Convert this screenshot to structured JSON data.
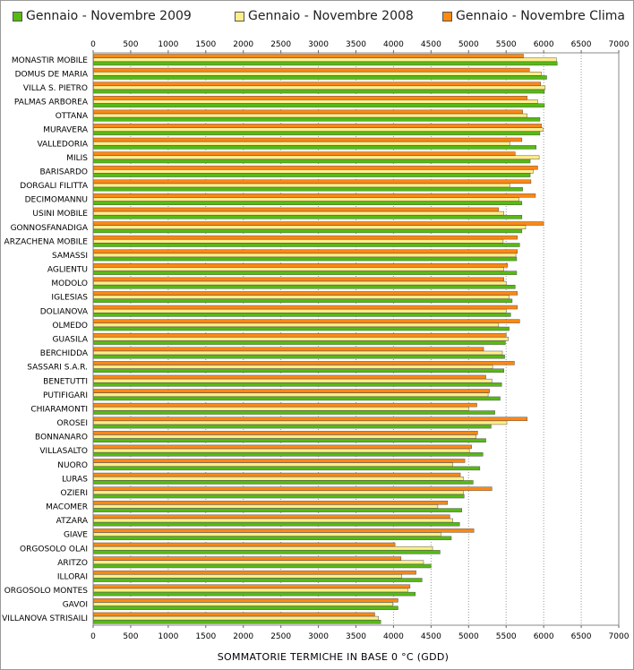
{
  "legend": [
    {
      "label": "Gennaio - Novembre 2009",
      "color": "#55bb11"
    },
    {
      "label": "Gennaio - Novembre 2008",
      "color": "#ffee88"
    },
    {
      "label": "Gennaio - Novembre Clima",
      "color": "#ff8811"
    }
  ],
  "chart_data": {
    "type": "bar",
    "orientation": "horizontal",
    "xlabel": "SOMMATORIE TERMICHE IN BASE 0 °C (GDD)",
    "xlim": [
      0,
      7000
    ],
    "xticks": [
      0,
      500,
      1000,
      1500,
      2000,
      2500,
      3000,
      3500,
      4000,
      4500,
      5000,
      5500,
      6000,
      6500,
      7000
    ],
    "grid": "vertical dotted",
    "legend_position": "top",
    "categories": [
      "MONASTIR MOBILE",
      "DOMUS DE MARIA",
      "VILLA S. PIETRO",
      "PALMAS ARBOREA",
      "OTTANA",
      "MURAVERA",
      "VALLEDORIA",
      "MILIS",
      "BARISARDO",
      "DORGALI FILITTA",
      "DECIMOMANNU",
      "USINI MOBILE",
      "GONNOSFANADIGA",
      "ARZACHENA MOBILE",
      "SAMASSI",
      "AGLIENTU",
      "MODOLO",
      "IGLESIAS",
      "DOLIANOVA",
      "OLMEDO",
      "GUASILA",
      "BERCHIDDA",
      "SASSARI S.A.R.",
      "BENETUTTI",
      "PUTIFIGARI",
      "CHIARAMONTI",
      "OROSEI",
      "BONNANARO",
      "VILLASALTO",
      "NUORO",
      "LURAS",
      "OZIERI",
      "MACOMER",
      "ATZARA",
      "GIAVE",
      "ORGOSOLO OLAI",
      "ARITZO",
      "ILLORAI",
      "ORGOSOLO MONTES",
      "GAVOI",
      "VILLANOVA STRISAILI"
    ],
    "series": [
      {
        "name": "Gennaio - Novembre Clima",
        "color": "#ff8811",
        "values": [
          5730,
          5810,
          5960,
          5780,
          5720,
          5970,
          5710,
          5620,
          5920,
          5830,
          5890,
          5400,
          6000,
          5650,
          5650,
          5520,
          5470,
          5650,
          5650,
          5680,
          5500,
          5200,
          5610,
          5230,
          5280,
          5110,
          5780,
          5120,
          5040,
          4950,
          4890,
          5310,
          4720,
          4750,
          5070,
          4020,
          4100,
          4300,
          4220,
          4060,
          3750
        ]
      },
      {
        "name": "Gennaio - Novembre 2008",
        "color": "#ffee88",
        "values": [
          6170,
          5970,
          6020,
          5920,
          5780,
          5990,
          5550,
          5940,
          5860,
          5550,
          5670,
          5470,
          5760,
          5460,
          5630,
          5470,
          5500,
          5540,
          5500,
          5400,
          5530,
          5450,
          5320,
          5310,
          5260,
          5000,
          5510,
          5100,
          5010,
          4790,
          4930,
          4930,
          4590,
          4790,
          4630,
          4520,
          4400,
          4110,
          4190,
          3990,
          3800
        ]
      },
      {
        "name": "Gennaio - Novembre 2009",
        "color": "#55bb11",
        "values": [
          6180,
          6040,
          6010,
          6010,
          5950,
          5950,
          5900,
          5820,
          5820,
          5720,
          5710,
          5710,
          5710,
          5680,
          5640,
          5640,
          5620,
          5580,
          5560,
          5540,
          5490,
          5480,
          5470,
          5440,
          5420,
          5350,
          5300,
          5230,
          5190,
          5150,
          5060,
          4940,
          4910,
          4880,
          4770,
          4620,
          4500,
          4380,
          4290,
          4060,
          3830
        ]
      }
    ]
  }
}
